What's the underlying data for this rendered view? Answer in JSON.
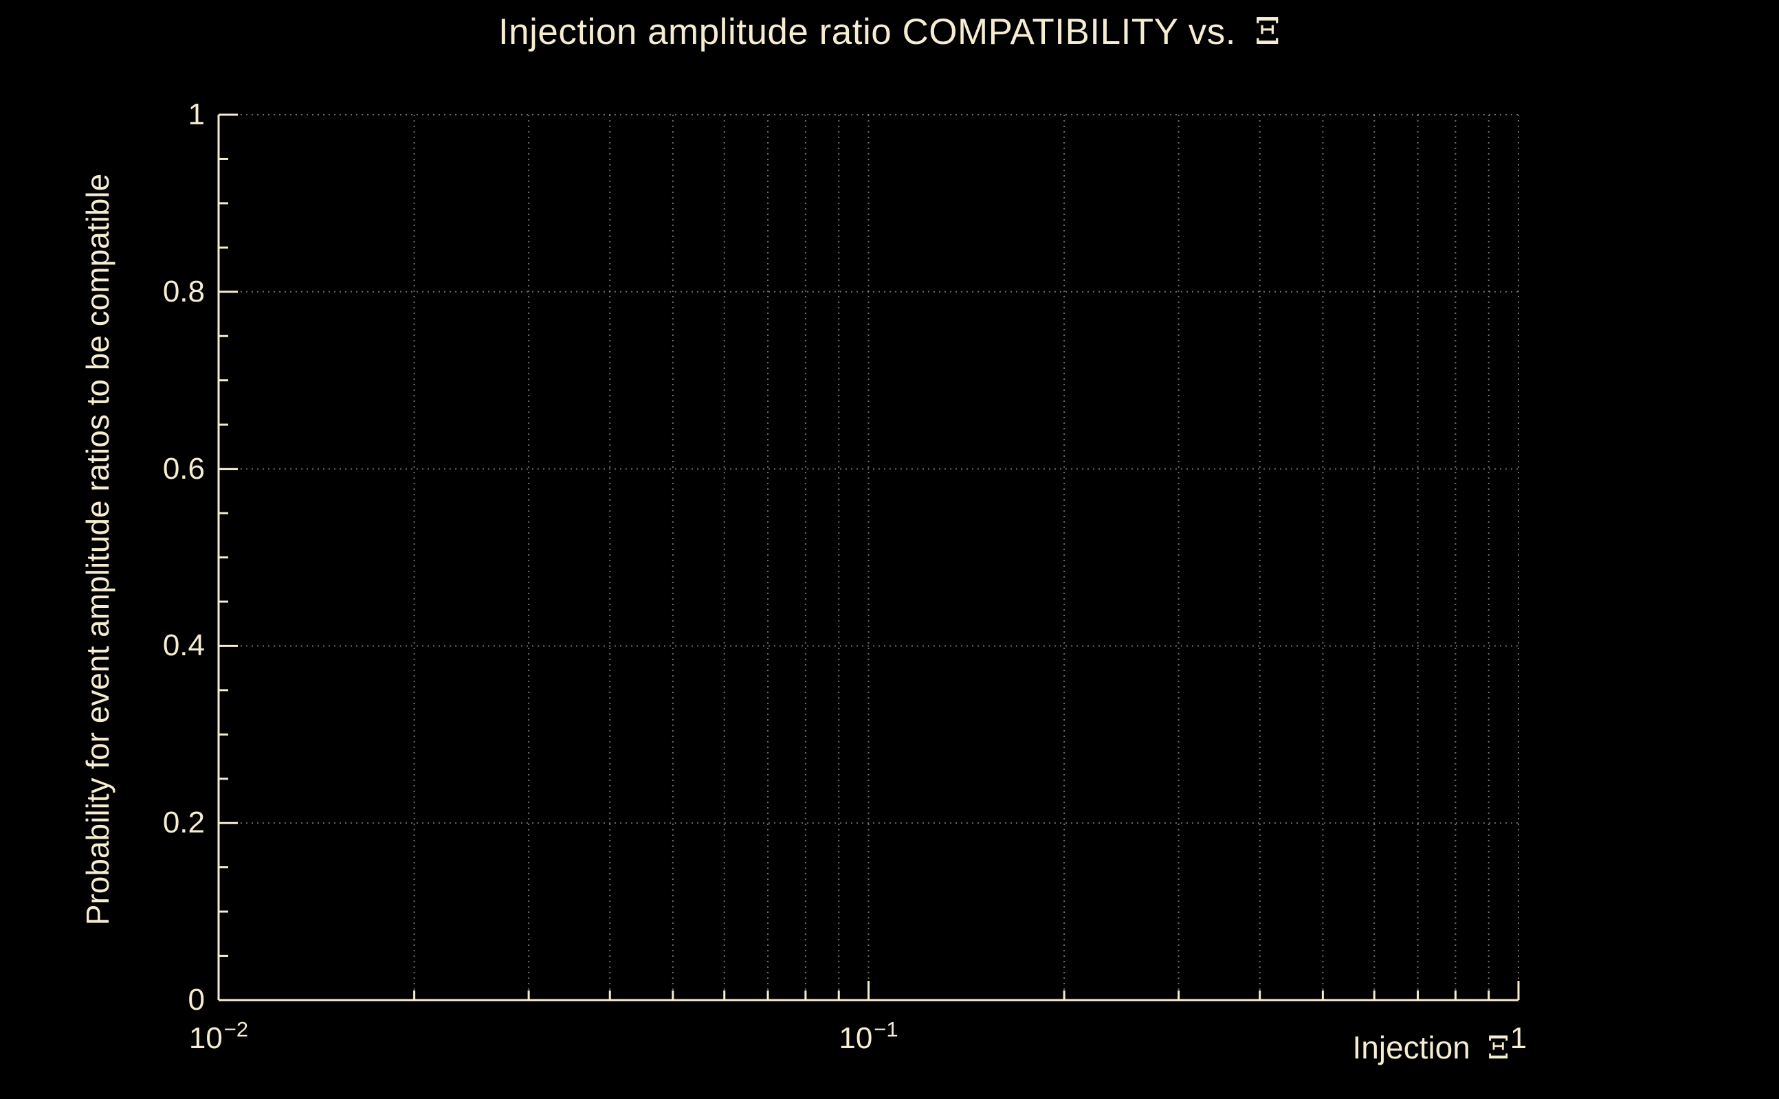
{
  "chart_data": {
    "type": "line",
    "title": "Injection amplitude ratio COMPATIBILITY vs. Ξ",
    "title_main": "Injection amplitude ratio COMPATIBILITY vs. ",
    "title_symbol": "Ξ",
    "xlabel": "Injection Ξ",
    "xlabel_main": "Injection ",
    "xlabel_symbol": "Ξ",
    "ylabel": "Probability for event amplitude ratios to be compatible",
    "x_scale": "log",
    "y_scale": "linear",
    "xlim": [
      0.01,
      1
    ],
    "ylim": [
      0,
      1
    ],
    "x_major_ticks": [
      0.01,
      0.1,
      1
    ],
    "x_major_labels": [
      {
        "base": "10",
        "exp": "−2"
      },
      {
        "base": "10",
        "exp": "−1"
      },
      {
        "base": "1",
        "exp": ""
      }
    ],
    "x_minor_multipliers": [
      2,
      3,
      4,
      5,
      6,
      7,
      8,
      9
    ],
    "y_major_ticks": [
      0,
      0.2,
      0.4,
      0.6,
      0.8,
      1
    ],
    "y_major_labels": [
      "0",
      "0.2",
      "0.4",
      "0.6",
      "0.8",
      "1"
    ],
    "y_minor_tick_step": 0.05,
    "grid": true,
    "legend": null,
    "series": [],
    "colors": {
      "background": "#000000",
      "axes_and_text": "#f6ecd2",
      "grid": "#cfc8b4"
    }
  }
}
